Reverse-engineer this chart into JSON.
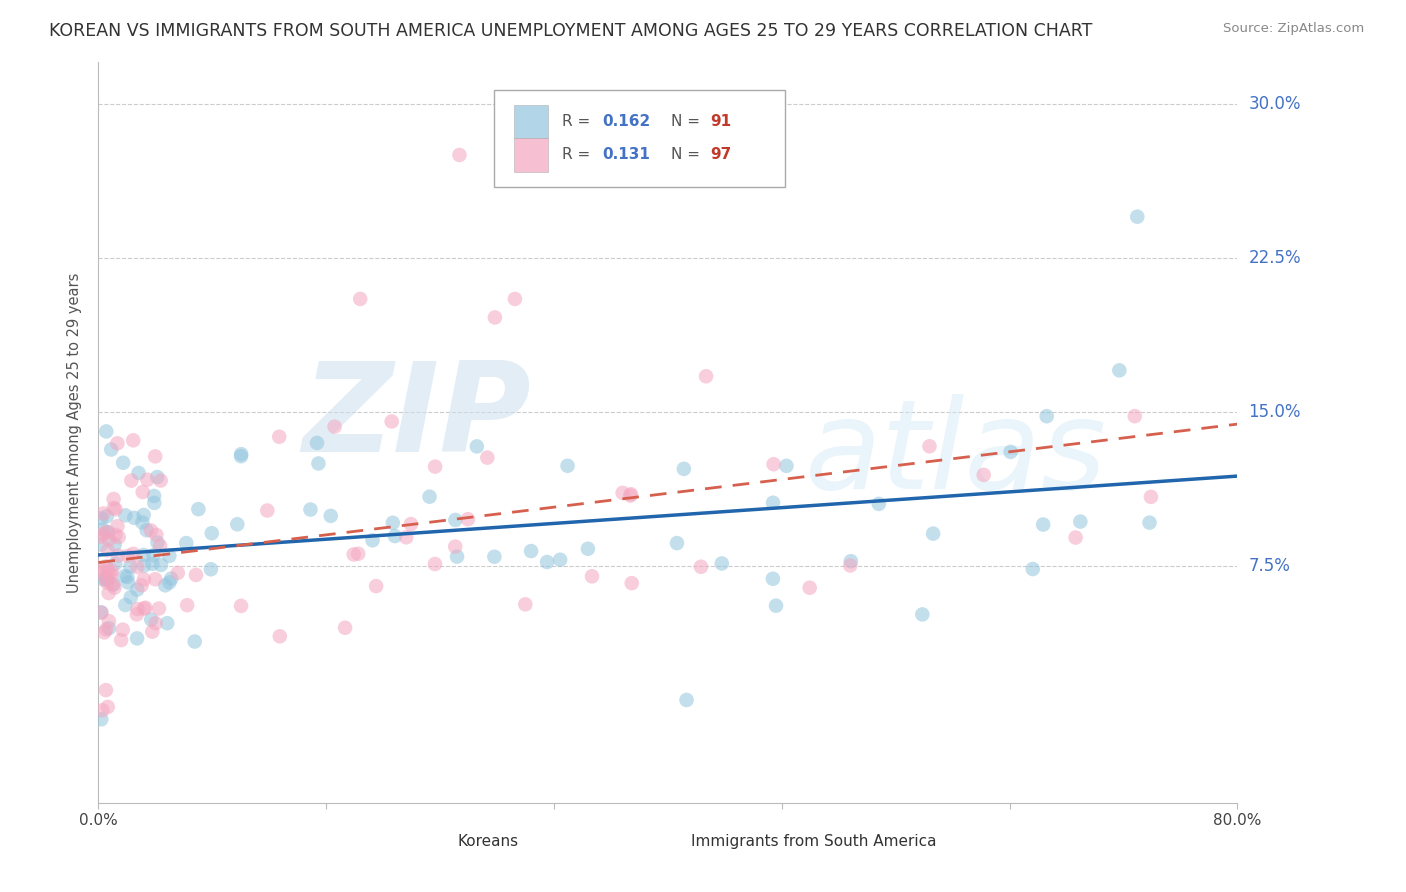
{
  "title": "KOREAN VS IMMIGRANTS FROM SOUTH AMERICA UNEMPLOYMENT AMONG AGES 25 TO 29 YEARS CORRELATION CHART",
  "source": "Source: ZipAtlas.com",
  "ylabel": "Unemployment Among Ages 25 to 29 years",
  "xlim": [
    0.0,
    0.8
  ],
  "ylim": [
    -0.04,
    0.32
  ],
  "ytick_vals": [
    0.075,
    0.15,
    0.225,
    0.3
  ],
  "ytick_labels": [
    "7.5%",
    "15.0%",
    "22.5%",
    "30.0%"
  ],
  "korean_R": 0.162,
  "korean_N": 91,
  "sa_R": 0.131,
  "sa_N": 97,
  "korean_color": "#92c5de",
  "sa_color": "#f4a6c0",
  "korean_line_color": "#2166ac",
  "sa_line_color": "#d6604d",
  "background_color": "#ffffff",
  "grid_color": "#cccccc",
  "watermark_zip": "ZIP",
  "watermark_atlas": "atlas",
  "title_fontsize": 12.5,
  "tick_label_color_y": "#4472c4",
  "legend_r_color": "#4472c4",
  "legend_n_color": "#c0392b"
}
